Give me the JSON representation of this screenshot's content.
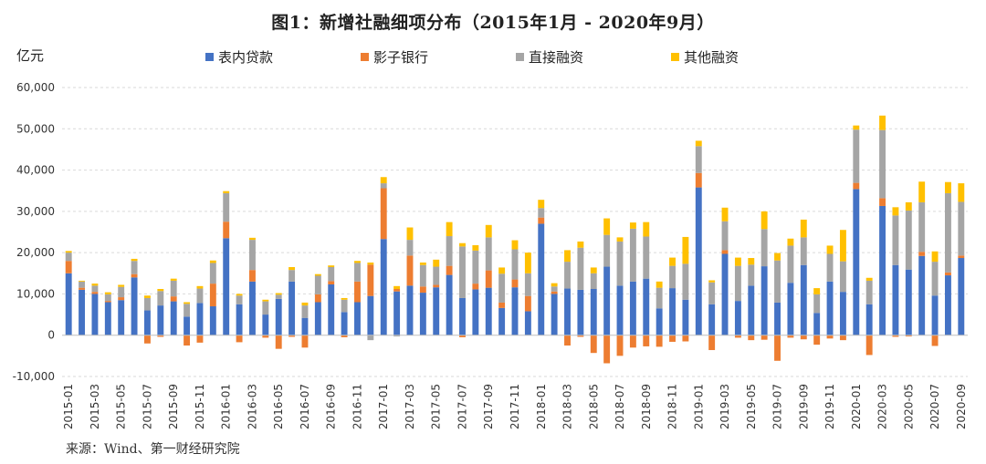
{
  "title": "图1：新增社融细项分布（2015年1月 - 2020年9月）",
  "unit_label": "亿元",
  "source": "来源：Wind、第一财经研究院",
  "colors": {
    "on_balance": "#4472C4",
    "shadow": "#ED7D31",
    "direct": "#A5A5A5",
    "other": "#FFC000"
  },
  "chart_data": {
    "type": "bar",
    "stacked": true,
    "title": "图1：新增社融细项分布（2015年1月 - 2020年9月）",
    "ylabel": "亿元",
    "ylim": [
      -10000,
      60000
    ],
    "yticks": [
      -10000,
      0,
      10000,
      20000,
      30000,
      40000,
      50000,
      60000
    ],
    "ytick_labels": [
      "-10,000",
      "0",
      "10,000",
      "20,000",
      "30,000",
      "40,000",
      "50,000",
      "60,000"
    ],
    "grid": true,
    "legend_position": "top",
    "categories": [
      "2015-01",
      "2015-02",
      "2015-03",
      "2015-04",
      "2015-05",
      "2015-06",
      "2015-07",
      "2015-08",
      "2015-09",
      "2015-10",
      "2015-11",
      "2015-12",
      "2016-01",
      "2016-02",
      "2016-03",
      "2016-04",
      "2016-05",
      "2016-06",
      "2016-07",
      "2016-08",
      "2016-09",
      "2016-10",
      "2016-11",
      "2016-12",
      "2017-01",
      "2017-02",
      "2017-03",
      "2017-04",
      "2017-05",
      "2017-06",
      "2017-07",
      "2017-08",
      "2017-09",
      "2017-10",
      "2017-11",
      "2017-12",
      "2018-01",
      "2018-02",
      "2018-03",
      "2018-04",
      "2018-05",
      "2018-06",
      "2018-07",
      "2018-08",
      "2018-09",
      "2018-10",
      "2018-11",
      "2018-12",
      "2019-01",
      "2019-02",
      "2019-03",
      "2019-04",
      "2019-05",
      "2019-06",
      "2019-07",
      "2019-08",
      "2019-09",
      "2019-10",
      "2019-11",
      "2019-12",
      "2020-01",
      "2020-02",
      "2020-03",
      "2020-04",
      "2020-05",
      "2020-06",
      "2020-07",
      "2020-08",
      "2020-09"
    ],
    "x_tick_labels_every": 2,
    "series": [
      {
        "name": "表内贷款",
        "color": "#4472C4",
        "values": [
          15000,
          11000,
          10000,
          8000,
          8500,
          14000,
          6000,
          7200,
          8200,
          4500,
          7800,
          7000,
          23500,
          7500,
          13000,
          5000,
          8800,
          13000,
          4200,
          8000,
          12300,
          5600,
          8000,
          9500,
          23300,
          10600,
          12000,
          10300,
          11600,
          14600,
          9000,
          11100,
          11500,
          6600,
          11600,
          5800,
          27000,
          10000,
          11300,
          11000,
          11200,
          16600,
          12000,
          13000,
          13700,
          6500,
          11400,
          8600,
          35800,
          7500,
          19700,
          8300,
          12000,
          16700,
          7900,
          12700,
          17000,
          5400,
          13000,
          10500,
          35400,
          7500,
          31300,
          17000,
          15900,
          19200,
          9600,
          14500,
          18700
        ]
      },
      {
        "name": "影子银行",
        "color": "#ED7D31",
        "values": [
          3000,
          500,
          500,
          300,
          700,
          800,
          -2000,
          -400,
          1200,
          -2500,
          -1800,
          5500,
          4000,
          -1700,
          2800,
          -600,
          -3300,
          -400,
          -3000,
          1900,
          800,
          -500,
          5000,
          7600,
          12300,
          600,
          7300,
          1500,
          600,
          2200,
          -500,
          1400,
          4200,
          1300,
          1900,
          3700,
          1500,
          600,
          -2500,
          -400,
          -4300,
          -6800,
          -5000,
          -3000,
          -2700,
          -2800,
          -1600,
          -1500,
          3500,
          -3600,
          900,
          -600,
          -1200,
          -1100,
          -6200,
          -600,
          -1000,
          -2300,
          -800,
          -1200,
          1500,
          -4800,
          1900,
          -400,
          -300,
          1000,
          -2600,
          700,
          600
        ]
      },
      {
        "name": "直接融资",
        "color": "#A5A5A5",
        "values": [
          2000,
          1500,
          1500,
          1600,
          2500,
          3200,
          3000,
          3500,
          3800,
          3100,
          3500,
          5000,
          6900,
          2100,
          7300,
          3200,
          1000,
          2800,
          3000,
          4500,
          3400,
          3000,
          4500,
          -1200,
          1200,
          -300,
          3800,
          5200,
          4400,
          7200,
          12500,
          8000,
          8000,
          7000,
          7300,
          5500,
          2300,
          1200,
          6500,
          10200,
          3800,
          7700,
          10700,
          12800,
          10200,
          5000,
          5400,
          8700,
          6500,
          5300,
          7000,
          8500,
          5100,
          9000,
          10200,
          9000,
          6700,
          4500,
          6700,
          7400,
          12900,
          5700,
          16500,
          12000,
          14300,
          12000,
          8200,
          19200,
          13000
        ]
      },
      {
        "name": "其他融资",
        "color": "#FFC000",
        "values": [
          400,
          200,
          500,
          500,
          500,
          500,
          600,
          500,
          500,
          400,
          600,
          600,
          500,
          400,
          500,
          400,
          400,
          700,
          700,
          400,
          400,
          400,
          500,
          500,
          1500,
          700,
          3000,
          600,
          1700,
          3400,
          800,
          1300,
          3000,
          1500,
          2200,
          5000,
          2000,
          800,
          2800,
          1500,
          1400,
          4000,
          1000,
          1500,
          3500,
          1500,
          2000,
          6500,
          1300,
          500,
          3300,
          2000,
          1600,
          4300,
          1800,
          1700,
          4300,
          1500,
          2000,
          7600,
          1000,
          700,
          3500,
          2000,
          2000,
          5000,
          2500,
          2700,
          4500
        ]
      }
    ]
  }
}
